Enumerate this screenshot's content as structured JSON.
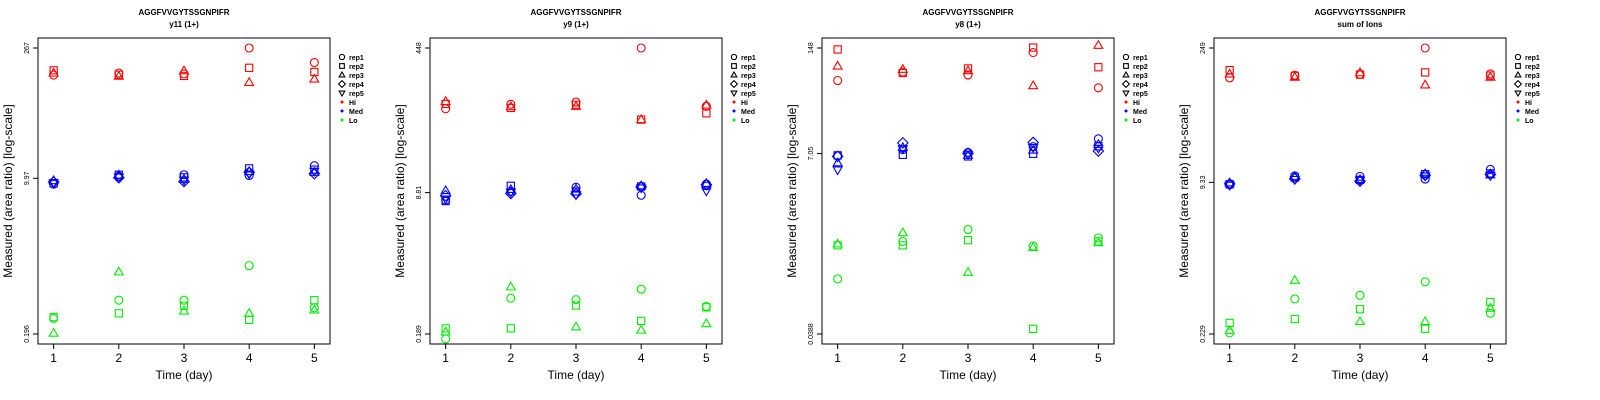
{
  "colors": {
    "Hi": "#ff0000",
    "Med": "#0000ff",
    "Lo": "#00ee00",
    "axis": "#000000"
  },
  "legend": {
    "reps": [
      {
        "label": "rep1",
        "shape": "circle"
      },
      {
        "label": "rep2",
        "shape": "square"
      },
      {
        "label": "rep3",
        "shape": "triangle-up"
      },
      {
        "label": "rep4",
        "shape": "diamond"
      },
      {
        "label": "rep5",
        "shape": "triangle-down"
      }
    ],
    "groups": [
      {
        "label": "Hi",
        "color": "#ff0000"
      },
      {
        "label": "Med",
        "color": "#0000ff"
      },
      {
        "label": "Lo",
        "color": "#00ee00"
      }
    ]
  },
  "chart_data": [
    {
      "type": "scatter",
      "title": "AGGFVVGYTSSGNPIFR",
      "subtitle": "y11 (1+)",
      "xlabel": "Time (day)",
      "ylabel": "Measured (area ratio) [log-scale]",
      "x_ticks": [
        1,
        2,
        3,
        4,
        5
      ],
      "y_ticks": [
        {
          "value": 0.196,
          "label": "0.196"
        },
        {
          "value": 9.97,
          "label": "9.97"
        },
        {
          "value": 267,
          "label": "267"
        }
      ],
      "y_scale": "log",
      "ylim": [
        0.196,
        267
      ],
      "series": [
        {
          "group": "Hi",
          "rep": "rep1",
          "x": [
            1,
            2,
            3,
            4,
            5
          ],
          "y": [
            135,
            142,
            139,
            267,
            185
          ]
        },
        {
          "group": "Hi",
          "rep": "rep2",
          "x": [
            1,
            2,
            3,
            4,
            5
          ],
          "y": [
            152,
            136,
            132,
            162,
            146
          ]
        },
        {
          "group": "Hi",
          "rep": "rep3",
          "x": [
            1,
            2,
            3,
            4,
            5
          ],
          "y": [
            142,
            131,
            150,
            112,
            122
          ]
        },
        {
          "group": "Med",
          "rep": "rep1",
          "x": [
            1,
            2,
            3,
            4,
            5
          ],
          "y": [
            8.6,
            10.5,
            10.9,
            10.7,
            13.7
          ]
        },
        {
          "group": "Med",
          "rep": "rep2",
          "x": [
            1,
            2,
            3,
            4,
            5
          ],
          "y": [
            8.8,
            10.9,
            10.2,
            12.8,
            12.4
          ]
        },
        {
          "group": "Med",
          "rep": "rep3",
          "x": [
            1,
            2,
            3,
            4,
            5
          ],
          "y": [
            9.4,
            10.8,
            9.7,
            11.8,
            11.6
          ]
        },
        {
          "group": "Med",
          "rep": "rep4",
          "x": [
            1,
            2,
            3,
            4,
            5
          ],
          "y": [
            9.1,
            10.1,
            9.2,
            11.6,
            11.2
          ]
        },
        {
          "group": "Med",
          "rep": "rep5",
          "x": [
            1,
            2,
            3,
            4,
            5
          ],
          "y": [
            8.9,
            10.3,
            9.5,
            11.1,
            11.9
          ]
        },
        {
          "group": "Lo",
          "rep": "rep1",
          "x": [
            1,
            2,
            3,
            4,
            5
          ],
          "y": [
            0.29,
            0.46,
            0.46,
            1.1,
            0.38
          ]
        },
        {
          "group": "Lo",
          "rep": "rep2",
          "x": [
            1,
            2,
            3,
            4,
            5
          ],
          "y": [
            0.3,
            0.33,
            0.4,
            0.28,
            0.46
          ]
        },
        {
          "group": "Lo",
          "rep": "rep3",
          "x": [
            1,
            2,
            3,
            4,
            5
          ],
          "y": [
            0.2,
            0.94,
            0.35,
            0.33,
            0.36
          ]
        }
      ]
    },
    {
      "type": "scatter",
      "title": "AGGFVVGYTSSGNPIFR",
      "subtitle": "y9 (1+)",
      "xlabel": "Time (day)",
      "ylabel": "Measured (area ratio) [log-scale]",
      "x_ticks": [
        1,
        2,
        3,
        4,
        5
      ],
      "y_ticks": [
        {
          "value": 0.189,
          "label": "0.189"
        },
        {
          "value": 8.81,
          "label": "8.81"
        },
        {
          "value": 448,
          "label": "448"
        }
      ],
      "y_scale": "log",
      "ylim": [
        0.189,
        448
      ],
      "series": [
        {
          "group": "Hi",
          "rep": "rep1",
          "x": [
            1,
            2,
            3,
            4,
            5
          ],
          "y": [
            86,
            97,
            103,
            448,
            92
          ]
        },
        {
          "group": "Hi",
          "rep": "rep2",
          "x": [
            1,
            2,
            3,
            4,
            5
          ],
          "y": [
            98,
            88,
            96,
            64,
            76
          ]
        },
        {
          "group": "Hi",
          "rep": "rep3",
          "x": [
            1,
            2,
            3,
            4,
            5
          ],
          "y": [
            105,
            91,
            92,
            64,
            95
          ]
        },
        {
          "group": "Med",
          "rep": "rep1",
          "x": [
            1,
            2,
            3,
            4,
            5
          ],
          "y": [
            7.2,
            9.1,
            10.2,
            8.2,
            11.1
          ]
        },
        {
          "group": "Med",
          "rep": "rep2",
          "x": [
            1,
            2,
            3,
            4,
            5
          ],
          "y": [
            7.0,
            10.6,
            9.1,
            10.4,
            10.6
          ]
        },
        {
          "group": "Med",
          "rep": "rep3",
          "x": [
            1,
            2,
            3,
            4,
            5
          ],
          "y": [
            9.3,
            9.6,
            9.7,
            10.6,
            11.3
          ]
        },
        {
          "group": "Med",
          "rep": "rep4",
          "x": [
            1,
            2,
            3,
            4,
            5
          ],
          "y": [
            8.1,
            8.6,
            8.5,
            10.3,
            10.9
          ]
        },
        {
          "group": "Med",
          "rep": "rep5",
          "x": [
            1,
            2,
            3,
            4,
            5
          ],
          "y": [
            7.4,
            8.9,
            8.3,
            10.0,
            9.2
          ]
        },
        {
          "group": "Lo",
          "rep": "rep1",
          "x": [
            1,
            2,
            3,
            4,
            5
          ],
          "y": [
            0.165,
            0.5,
            0.48,
            0.64,
            0.4
          ]
        },
        {
          "group": "Lo",
          "rep": "rep2",
          "x": [
            1,
            2,
            3,
            4,
            5
          ],
          "y": [
            0.22,
            0.22,
            0.41,
            0.27,
            0.39
          ]
        },
        {
          "group": "Lo",
          "rep": "rep3",
          "x": [
            1,
            2,
            3,
            4,
            5
          ],
          "y": [
            0.2,
            0.68,
            0.23,
            0.21,
            0.25
          ]
        }
      ]
    },
    {
      "type": "scatter",
      "title": "AGGFVVGYTSSGNPIFR",
      "subtitle": "y8 (1+)",
      "xlabel": "Time (day)",
      "ylabel": "Measured (area ratio) [log-scale]",
      "x_ticks": [
        1,
        2,
        3,
        4,
        5
      ],
      "y_ticks": [
        {
          "value": 0.0388,
          "label": "0.0388"
        },
        {
          "value": 7.05,
          "label": "7.05"
        },
        {
          "value": 148,
          "label": "148"
        }
      ],
      "y_scale": "log",
      "ylim": [
        0.0388,
        148
      ],
      "series": [
        {
          "group": "Hi",
          "rep": "rep1",
          "x": [
            1,
            2,
            3,
            4,
            5
          ],
          "y": [
            58,
            74,
            68,
            130,
            47
          ]
        },
        {
          "group": "Hi",
          "rep": "rep2",
          "x": [
            1,
            2,
            3,
            4,
            5
          ],
          "y": [
            142,
            72,
            82,
            150,
            85
          ]
        },
        {
          "group": "Hi",
          "rep": "rep3",
          "x": [
            1,
            2,
            3,
            4,
            5
          ],
          "y": [
            88,
            80,
            77,
            50,
            160
          ]
        },
        {
          "group": "Med",
          "rep": "rep1",
          "x": [
            1,
            2,
            3,
            4,
            5
          ],
          "y": [
            6.6,
            7.9,
            7.3,
            8.6,
            10.8
          ]
        },
        {
          "group": "Med",
          "rep": "rep2",
          "x": [
            1,
            2,
            3,
            4,
            5
          ],
          "y": [
            6.7,
            6.8,
            6.5,
            7.0,
            8.7
          ]
        },
        {
          "group": "Med",
          "rep": "rep3",
          "x": [
            1,
            2,
            3,
            4,
            5
          ],
          "y": [
            5.4,
            8.4,
            6.7,
            7.8,
            9.2
          ]
        },
        {
          "group": "Med",
          "rep": "rep4",
          "x": [
            1,
            2,
            3,
            4,
            5
          ],
          "y": [
            6.5,
            9.6,
            7.1,
            9.7,
            7.6
          ]
        },
        {
          "group": "Med",
          "rep": "rep5",
          "x": [
            1,
            2,
            3,
            4,
            5
          ],
          "y": [
            4.4,
            8.1,
            6.9,
            8.4,
            8.2
          ]
        },
        {
          "group": "Lo",
          "rep": "rep1",
          "x": [
            1,
            2,
            3,
            4,
            5
          ],
          "y": [
            0.19,
            0.56,
            0.79,
            0.49,
            0.62
          ]
        },
        {
          "group": "Lo",
          "rep": "rep2",
          "x": [
            1,
            2,
            3,
            4,
            5
          ],
          "y": [
            0.5,
            0.5,
            0.58,
            0.045,
            0.56
          ]
        },
        {
          "group": "Lo",
          "rep": "rep3",
          "x": [
            1,
            2,
            3,
            4,
            5
          ],
          "y": [
            0.52,
            0.72,
            0.23,
            0.47,
            0.54
          ]
        }
      ]
    },
    {
      "type": "scatter",
      "title": "AGGFVVGYTSSGNPIFR",
      "subtitle": "sum of Ions",
      "xlabel": "Time (day)",
      "ylabel": "Measured (area ratio) [log-scale]",
      "x_ticks": [
        1,
        2,
        3,
        4,
        5
      ],
      "y_ticks": [
        {
          "value": 0.229,
          "label": "0.229"
        },
        {
          "value": 9.33,
          "label": "9.33"
        },
        {
          "value": 249,
          "label": "249"
        }
      ],
      "y_scale": "log",
      "ylim": [
        0.229,
        249
      ],
      "series": [
        {
          "group": "Hi",
          "rep": "rep1",
          "x": [
            1,
            2,
            3,
            4,
            5
          ],
          "y": [
            120,
            128,
            131,
            249,
            132
          ]
        },
        {
          "group": "Hi",
          "rep": "rep2",
          "x": [
            1,
            2,
            3,
            4,
            5
          ],
          "y": [
            145,
            126,
            130,
            137,
            127
          ]
        },
        {
          "group": "Hi",
          "rep": "rep3",
          "x": [
            1,
            2,
            3,
            4,
            5
          ],
          "y": [
            132,
            122,
            136,
            101,
            122
          ]
        },
        {
          "group": "Med",
          "rep": "rep1",
          "x": [
            1,
            2,
            3,
            4,
            5
          ],
          "y": [
            8.8,
            10.9,
            10.8,
            10.1,
            12.8
          ]
        },
        {
          "group": "Med",
          "rep": "rep2",
          "x": [
            1,
            2,
            3,
            4,
            5
          ],
          "y": [
            8.9,
            10.5,
            9.9,
            11.4,
            11.6
          ]
        },
        {
          "group": "Med",
          "rep": "rep3",
          "x": [
            1,
            2,
            3,
            4,
            5
          ],
          "y": [
            9.2,
            10.7,
            10.0,
            11.5,
            11.2
          ]
        },
        {
          "group": "Med",
          "rep": "rep4",
          "x": [
            1,
            2,
            3,
            4,
            5
          ],
          "y": [
            9.0,
            10.2,
            9.6,
            11.1,
            11.3
          ]
        },
        {
          "group": "Med",
          "rep": "rep5",
          "x": [
            1,
            2,
            3,
            4,
            5
          ],
          "y": [
            8.7,
            10.0,
            9.8,
            10.9,
            11.0
          ]
        },
        {
          "group": "Lo",
          "rep": "rep1",
          "x": [
            1,
            2,
            3,
            4,
            5
          ],
          "y": [
            0.235,
            0.54,
            0.59,
            0.82,
            0.38
          ]
        },
        {
          "group": "Lo",
          "rep": "rep2",
          "x": [
            1,
            2,
            3,
            4,
            5
          ],
          "y": [
            0.3,
            0.33,
            0.42,
            0.26,
            0.5
          ]
        },
        {
          "group": "Lo",
          "rep": "rep3",
          "x": [
            1,
            2,
            3,
            4,
            5
          ],
          "y": [
            0.25,
            0.85,
            0.31,
            0.31,
            0.43
          ]
        }
      ]
    }
  ]
}
